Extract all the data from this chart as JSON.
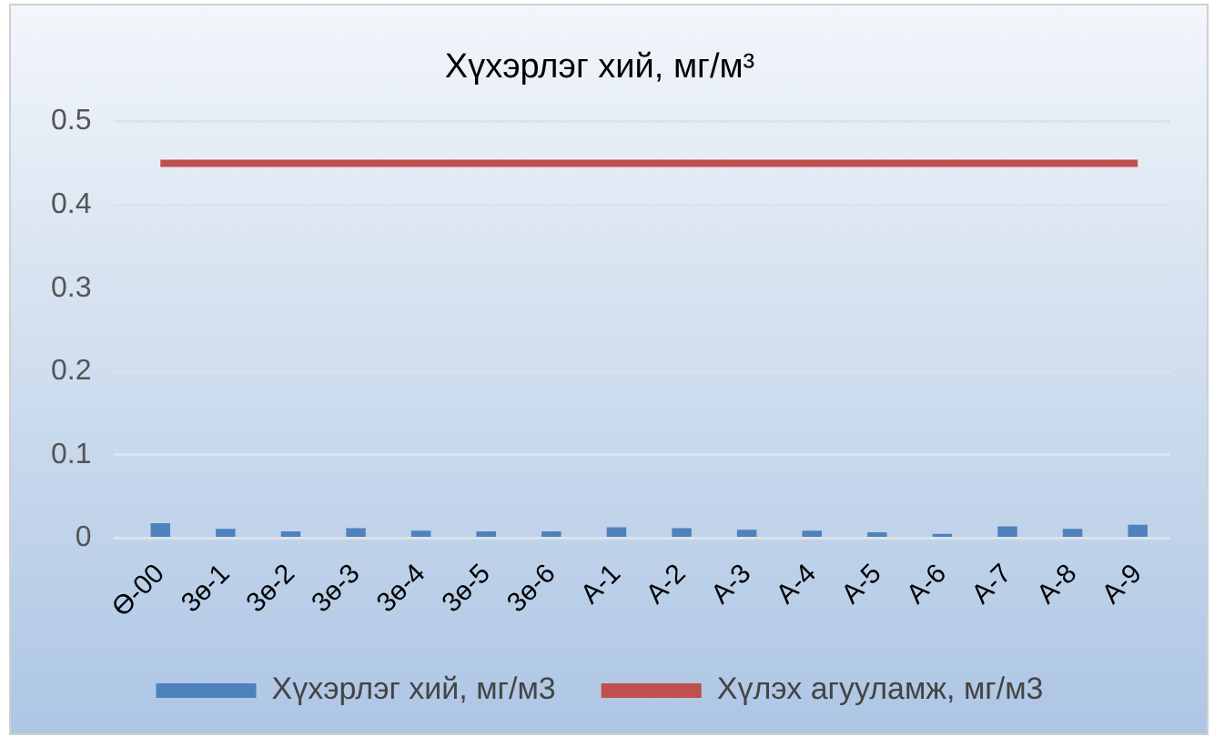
{
  "chart_data": {
    "type": "bar",
    "title": "Хүхэрлэг хий, мг/м³",
    "categories": [
      "Ө-00",
      "3ө-1",
      "3ө-2",
      "3ө-3",
      "3ө-4",
      "3ө-5",
      "3ө-6",
      "A-1",
      "A-2",
      "A-3",
      "A-4",
      "A-5",
      "A-6",
      "A-7",
      "A-8",
      "A-9"
    ],
    "series": [
      {
        "name": "Хүхэрлэг хий, мг/м3",
        "color": "#4f81bd",
        "values": [
          0.018,
          0.011,
          0.008,
          0.012,
          0.009,
          0.008,
          0.008,
          0.013,
          0.012,
          0.01,
          0.009,
          0.007,
          0.005,
          0.014,
          0.011,
          0.016
        ]
      },
      {
        "name": "Хүлэх агууламж, мг/м3",
        "type": "line",
        "color": "#c0504d",
        "values": [
          0.45,
          0.45,
          0.45,
          0.45,
          0.45,
          0.45,
          0.45,
          0.45,
          0.45,
          0.45,
          0.45,
          0.45,
          0.45,
          0.45,
          0.45,
          0.45
        ]
      }
    ],
    "ylim": [
      0,
      0.5
    ],
    "yticks": [
      0,
      0.1,
      0.2,
      0.3,
      0.4,
      0.5
    ],
    "grid": "y",
    "legend": "bottom",
    "marker": "none"
  }
}
